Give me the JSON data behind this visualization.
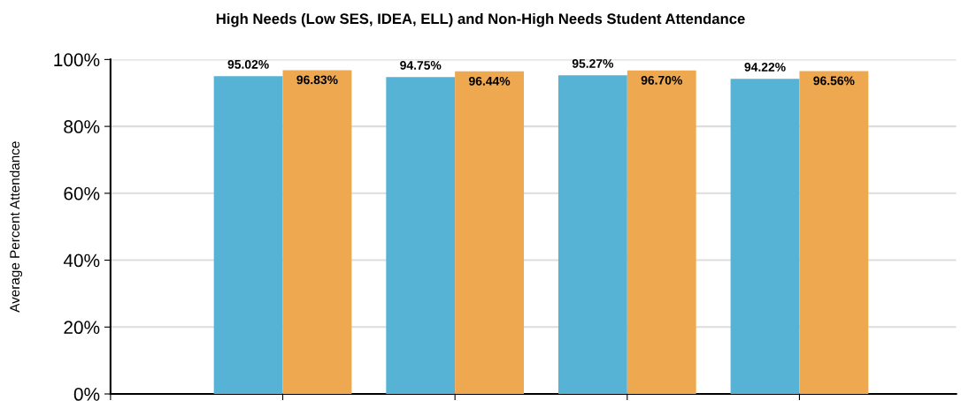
{
  "chart_data": {
    "type": "bar",
    "title": "High Needs (Low SES, IDEA, ELL) and Non-High Needs Student Attendance",
    "ylabel": "Average Percent Attendance",
    "categories": [
      null,
      null,
      null,
      null
    ],
    "series": [
      {
        "color": "#57b3d6",
        "values": [
          95.02,
          94.75,
          95.27,
          94.22
        ],
        "value_labels": [
          "95.02%",
          "94.75%",
          "95.27%",
          "94.22%"
        ]
      },
      {
        "color": "#eea84f",
        "values": [
          96.83,
          96.44,
          96.7,
          96.56
        ],
        "value_labels": [
          "96.83%",
          "96.44%",
          "96.70%",
          "96.56%"
        ]
      }
    ],
    "ylim": [
      0,
      100
    ],
    "yticks": [
      {
        "value": 0,
        "label": "0%"
      },
      {
        "value": 20,
        "label": "20%"
      },
      {
        "value": 40,
        "label": "40%"
      },
      {
        "value": 60,
        "label": "60%"
      },
      {
        "value": 80,
        "label": "80%"
      },
      {
        "value": 100,
        "label": "100%"
      }
    ],
    "grid": "y",
    "legend": false,
    "tick_labels": "y"
  }
}
